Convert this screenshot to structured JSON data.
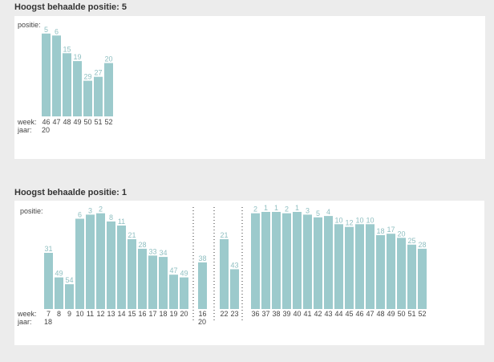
{
  "panels": [
    {
      "title": "Hoogst behaalde positie: 5",
      "position_label": "positie:",
      "week_label": "week:",
      "year_label": "jaar:"
    },
    {
      "title": "Hoogst behaalde positie: 1",
      "position_label": "positie:",
      "week_label": "week:",
      "year_label": "jaar:"
    }
  ],
  "colors": {
    "bar": "#9ccacc",
    "value_label": "#8fbfc1",
    "axis_text": "#444444",
    "separator": "#333333",
    "background": "#ececec",
    "panel": "#ffffff"
  },
  "chart_data": [
    {
      "type": "bar",
      "title": "Hoogst behaalde positie: 5",
      "ylabel": "positie:",
      "xlabel": "week:",
      "y_inverted": true,
      "ylim": [
        100,
        1
      ],
      "categories": [
        "46",
        "47",
        "48",
        "49",
        "50",
        "51",
        "52"
      ],
      "values": [
        5,
        6,
        15,
        19,
        29,
        27,
        20
      ],
      "year_labels": [
        {
          "year": "20",
          "at_week": "46"
        }
      ]
    },
    {
      "type": "bar",
      "title": "Hoogst behaalde positie: 1",
      "ylabel": "positie:",
      "xlabel": "week:",
      "y_inverted": true,
      "ylim": [
        100,
        1
      ],
      "groups": [
        {
          "categories": [
            "7",
            "8",
            "9",
            "10",
            "11",
            "12",
            "13",
            "14",
            "15",
            "16",
            "17",
            "18",
            "19",
            "20"
          ],
          "values": [
            31,
            49,
            54,
            6,
            3,
            2,
            8,
            11,
            21,
            28,
            33,
            34,
            47,
            49
          ],
          "year": "18"
        },
        {
          "categories": [
            "16"
          ],
          "values": [
            38
          ],
          "year": "20"
        },
        {
          "categories": [
            "22",
            "23"
          ],
          "values": [
            21,
            43
          ],
          "year": ""
        },
        {
          "categories": [
            "36",
            "37",
            "38",
            "39",
            "40",
            "41",
            "42",
            "43",
            "44",
            "45",
            "46",
            "47",
            "48",
            "49",
            "50",
            "51",
            "52"
          ],
          "values": [
            2,
            1,
            1,
            2,
            1,
            3,
            5,
            4,
            10,
            12,
            10,
            10,
            18,
            17,
            20,
            25,
            28
          ],
          "year": ""
        }
      ]
    }
  ]
}
